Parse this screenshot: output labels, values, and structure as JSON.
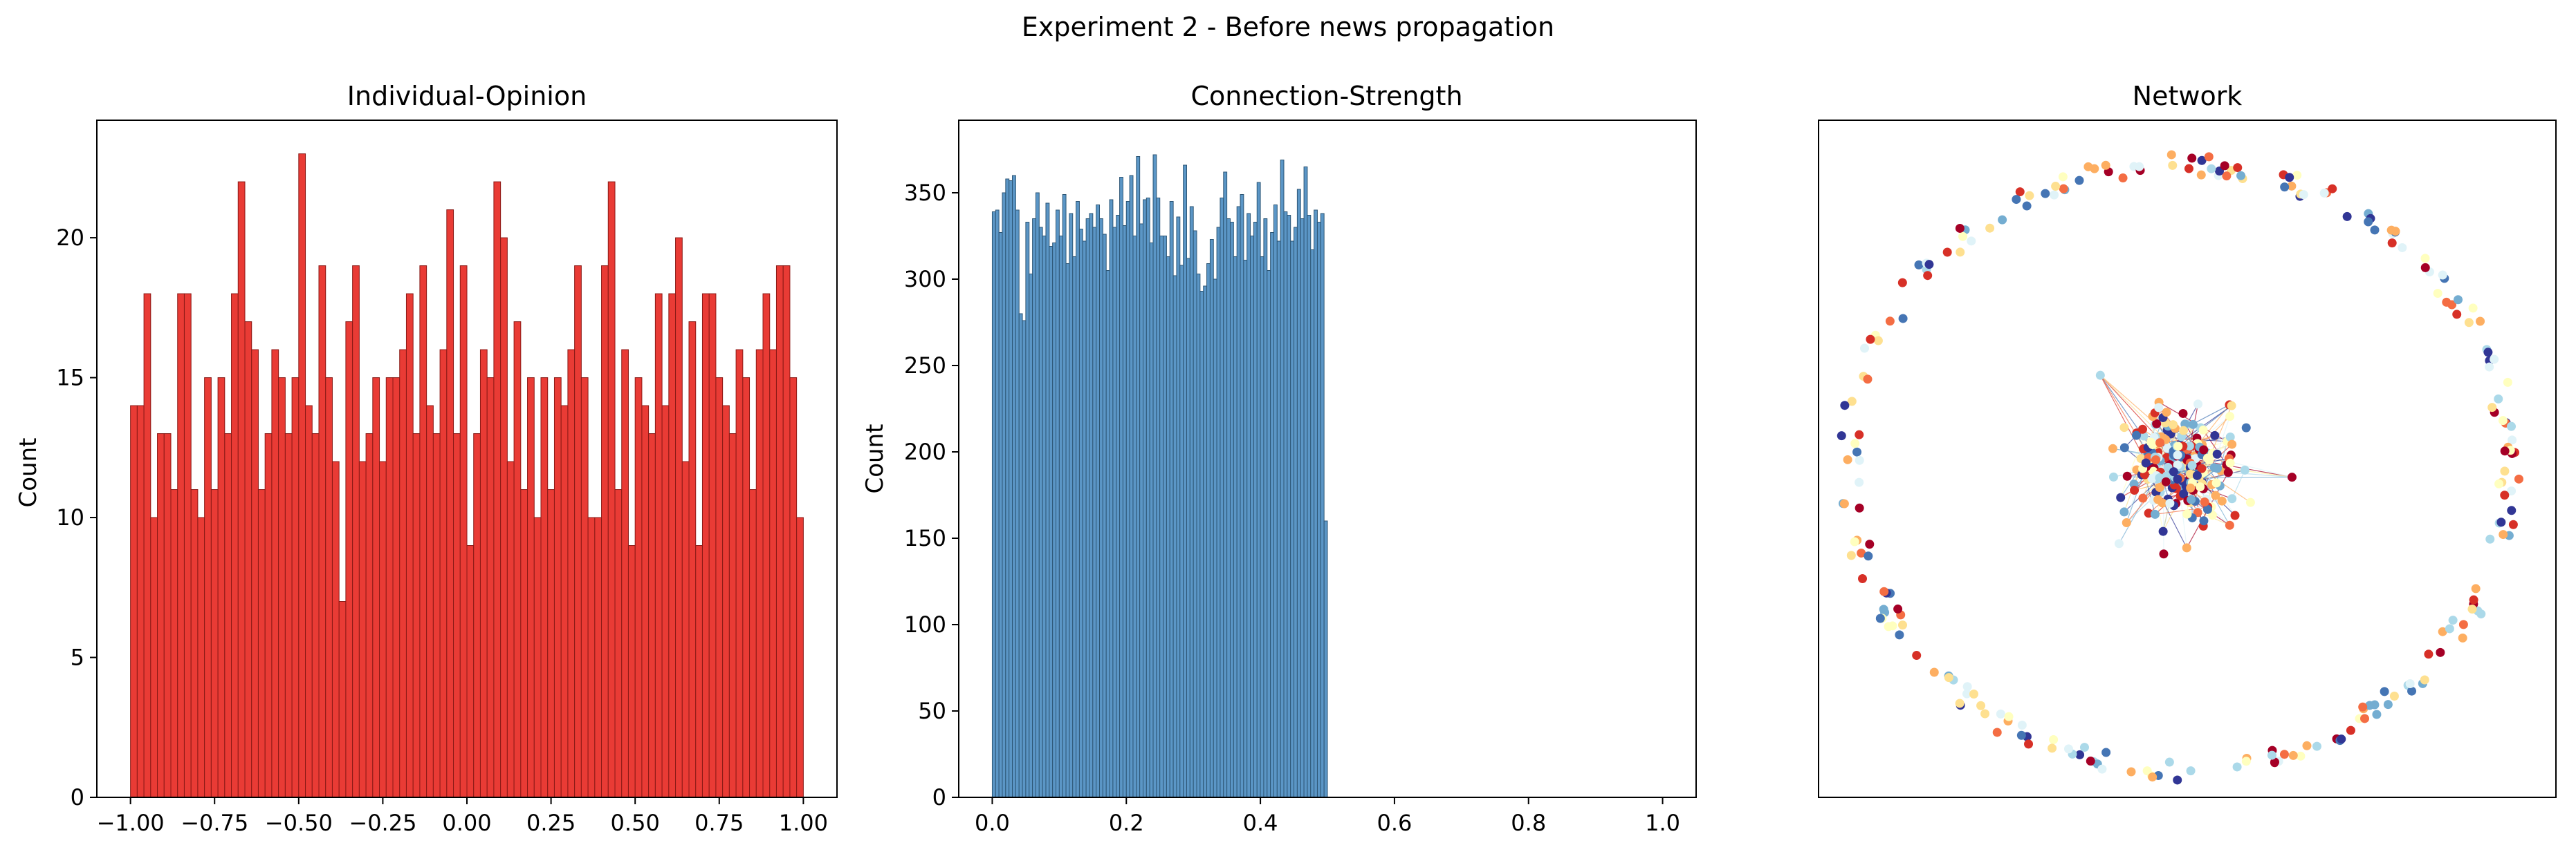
{
  "figure": {
    "title": "Experiment 2 - Before news propagation"
  },
  "chart_data": [
    {
      "type": "bar",
      "title": "Individual-Opinion",
      "xlabel": "",
      "ylabel": "Count",
      "xlim": [
        -1.1,
        1.1
      ],
      "ylim": [
        0,
        24.2
      ],
      "xticks": [
        "-1.00",
        "-0.75",
        "-0.50",
        "-0.25",
        "0.00",
        "0.25",
        "0.50",
        "0.75",
        "1.00"
      ],
      "yticks": [
        "0",
        "5",
        "10",
        "15",
        "20"
      ],
      "bin_start": -1.0,
      "bin_width": 0.02,
      "values": [
        14,
        14,
        18,
        10,
        13,
        13,
        11,
        18,
        18,
        11,
        10,
        15,
        11,
        15,
        13,
        18,
        22,
        17,
        16,
        11,
        13,
        16,
        15,
        13,
        15,
        23,
        14,
        13,
        19,
        15,
        12,
        7,
        17,
        19,
        12,
        13,
        15,
        12,
        15,
        15,
        16,
        18,
        13,
        19,
        14,
        13,
        16,
        21,
        13,
        19,
        9,
        13,
        16,
        15,
        22,
        20,
        12,
        17,
        11,
        15,
        10,
        15,
        11,
        15,
        14,
        16,
        19,
        15,
        10,
        10,
        19,
        22,
        11,
        16,
        9,
        15,
        14,
        13,
        18,
        14,
        18,
        20,
        12,
        17,
        9,
        18,
        18,
        15,
        14,
        13,
        16,
        15,
        11,
        16,
        18,
        16,
        19,
        19,
        15,
        10
      ],
      "bar_color": "#e8302a",
      "edge_color": "#8b1a16"
    },
    {
      "type": "bar",
      "title": "Connection-Strength",
      "xlabel": "",
      "ylabel": "Count",
      "xlim": [
        -0.05,
        1.05
      ],
      "ylim": [
        0,
        392
      ],
      "xticks": [
        "0.0",
        "0.2",
        "0.4",
        "0.6",
        "0.8",
        "1.0"
      ],
      "yticks": [
        "0",
        "50",
        "100",
        "150",
        "200",
        "250",
        "300",
        "350"
      ],
      "bin_start": 0.0,
      "bin_width": 0.005,
      "values": [
        339,
        340,
        327,
        350,
        358,
        357,
        360,
        340,
        280,
        276,
        333,
        303,
        335,
        350,
        330,
        325,
        344,
        319,
        321,
        340,
        325,
        349,
        309,
        338,
        313,
        345,
        329,
        322,
        335,
        338,
        330,
        343,
        335,
        326,
        305,
        346,
        330,
        337,
        359,
        331,
        345,
        360,
        325,
        371,
        332,
        346,
        347,
        321,
        372,
        347,
        325,
        325,
        313,
        345,
        302,
        336,
        308,
        366,
        312,
        342,
        328,
        303,
        293,
        296,
        309,
        323,
        300,
        330,
        347,
        362,
        335,
        333,
        313,
        342,
        349,
        311,
        338,
        325,
        333,
        356,
        313,
        335,
        305,
        327,
        343,
        322,
        369,
        339,
        337,
        322,
        330,
        352,
        335,
        365,
        337,
        317,
        340,
        333,
        338,
        160
      ]
    },
    {
      "type": "scatter",
      "title": "Network",
      "xlabel": "",
      "ylabel": "",
      "axes_visible": false,
      "palette": [
        "#a50026",
        "#d73027",
        "#f46d43",
        "#fdae61",
        "#fee090",
        "#ffffbf",
        "#e0f3f8",
        "#abd9e9",
        "#74add1",
        "#4575b4",
        "#313695"
      ],
      "node_count": 500,
      "layout": "dense cluster in center with a ring of isolated nodes around it"
    }
  ]
}
